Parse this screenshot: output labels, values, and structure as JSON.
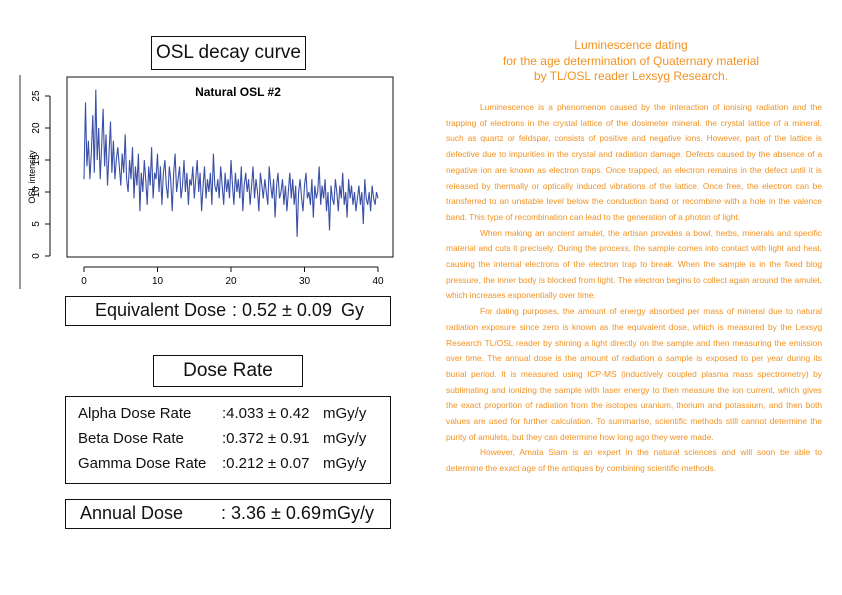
{
  "left": {
    "osl_title": "OSL decay curve",
    "equivalent_dose": {
      "label": "Equivalent Dose",
      "value": ": 0.52 ± 0.09",
      "unit": "Gy"
    },
    "dose_rate_title": "Dose Rate",
    "rates": [
      {
        "label": "Alpha Dose Rate",
        "value": ":4.033 ± 0.42",
        "unit": "mGy/y"
      },
      {
        "label": "Beta Dose Rate",
        "value": ":0.372 ± 0.91",
        "unit": "mGy/y"
      },
      {
        "label": "Gamma Dose Rate",
        "value": ":0.212 ± 0.07",
        "unit": "mGy/y"
      }
    ],
    "annual_dose": {
      "label": "Annual Dose",
      "value": ": 3.36 ± 0.69",
      "unit": "mGy/y"
    }
  },
  "chart_data": {
    "type": "line",
    "title": "Natural OSL #2",
    "xlabel": "",
    "ylabel": "OSL intensity",
    "xlim": [
      0,
      40
    ],
    "ylim": [
      0,
      25
    ],
    "xticks": [
      0,
      10,
      20,
      30,
      40
    ],
    "yticks": [
      0,
      5,
      10,
      15,
      20,
      25
    ],
    "grid": false,
    "line_color": "#3a4fa8",
    "x": [
      0,
      0.2,
      0.4,
      0.6,
      0.8,
      1,
      1.2,
      1.4,
      1.6,
      1.8,
      2,
      2.2,
      2.4,
      2.6,
      2.8,
      3,
      3.2,
      3.4,
      3.6,
      3.8,
      4,
      4.2,
      4.4,
      4.6,
      4.8,
      5,
      5.2,
      5.4,
      5.6,
      5.8,
      6,
      6.2,
      6.4,
      6.6,
      6.8,
      7,
      7.2,
      7.4,
      7.6,
      7.8,
      8,
      8.2,
      8.4,
      8.6,
      8.8,
      9,
      9.2,
      9.4,
      9.6,
      9.8,
      10,
      10.2,
      10.4,
      10.6,
      10.8,
      11,
      11.2,
      11.4,
      11.6,
      11.8,
      12,
      12.2,
      12.4,
      12.6,
      12.8,
      13,
      13.2,
      13.4,
      13.6,
      13.8,
      14,
      14.2,
      14.4,
      14.6,
      14.8,
      15,
      15.2,
      15.4,
      15.6,
      15.8,
      16,
      16.2,
      16.4,
      16.6,
      16.8,
      17,
      17.2,
      17.4,
      17.6,
      17.8,
      18,
      18.2,
      18.4,
      18.6,
      18.8,
      19,
      19.2,
      19.4,
      19.6,
      19.8,
      20,
      20.2,
      20.4,
      20.6,
      20.8,
      21,
      21.2,
      21.4,
      21.6,
      21.8,
      22,
      22.2,
      22.4,
      22.6,
      22.8,
      23,
      23.2,
      23.4,
      23.6,
      23.8,
      24,
      24.2,
      24.4,
      24.6,
      24.8,
      25,
      25.2,
      25.4,
      25.6,
      25.8,
      26,
      26.2,
      26.4,
      26.6,
      26.8,
      27,
      27.2,
      27.4,
      27.6,
      27.8,
      28,
      28.2,
      28.4,
      28.6,
      28.8,
      29,
      29.2,
      29.4,
      29.6,
      29.8,
      30,
      30.2,
      30.4,
      30.6,
      30.8,
      31,
      31.2,
      31.4,
      31.6,
      31.8,
      32,
      32.2,
      32.4,
      32.6,
      32.8,
      33,
      33.2,
      33.4,
      33.6,
      33.8,
      34,
      34.2,
      34.4,
      34.6,
      34.8,
      35,
      35.2,
      35.4,
      35.6,
      35.8,
      36,
      36.2,
      36.4,
      36.6,
      36.8,
      37,
      37.2,
      37.4,
      37.6,
      37.8,
      38,
      38.2,
      38.4,
      38.6,
      38.8,
      39,
      39.2,
      39.4,
      39.6,
      39.8,
      40
    ],
    "y": [
      12,
      24,
      14,
      18,
      12,
      16,
      22,
      13,
      26,
      15,
      20,
      12,
      17,
      23,
      14,
      19,
      11,
      16,
      21,
      13,
      18,
      12,
      15,
      17,
      14,
      11,
      16,
      13,
      19,
      12,
      10,
      15,
      12,
      17,
      9,
      14,
      11,
      16,
      7,
      13,
      10,
      15,
      12,
      8,
      14,
      11,
      17,
      9,
      13,
      12,
      16,
      10,
      14,
      8,
      13,
      15,
      11,
      9,
      14,
      12,
      7,
      13,
      16,
      10,
      12,
      14,
      9,
      11,
      15,
      10,
      13,
      8,
      12,
      11,
      14,
      9,
      12,
      15,
      10,
      13,
      7,
      11,
      14,
      9,
      12,
      10,
      13,
      8,
      16,
      11,
      10,
      12,
      9,
      14,
      11,
      8,
      13,
      10,
      12,
      9,
      15,
      11,
      8,
      13,
      10,
      12,
      9,
      14,
      7,
      11,
      13,
      10,
      12,
      8,
      11,
      14,
      9,
      12,
      10,
      7,
      13,
      11,
      9,
      12,
      10,
      8,
      14,
      11,
      9,
      12,
      6,
      11,
      13,
      9,
      10,
      12,
      8,
      11,
      7,
      10,
      13,
      9,
      12,
      8,
      11,
      3,
      10,
      12,
      9,
      7,
      11,
      13,
      9,
      10,
      8,
      12,
      6,
      11,
      9,
      10,
      14,
      8,
      11,
      9,
      12,
      7,
      10,
      4,
      11,
      9,
      8,
      12,
      10,
      7,
      11,
      9,
      13,
      8,
      10,
      6,
      12,
      9,
      11,
      8,
      10,
      7,
      9,
      11,
      8,
      10,
      5,
      12,
      9,
      8,
      10,
      7,
      11,
      9,
      8,
      10,
      9
    ]
  },
  "right": {
    "title_lines": [
      "Luminescence dating",
      "for the age determination of Quaternary material",
      "by TL/OSL reader Lexsyg Research."
    ],
    "paragraphs": [
      "Luminescence is a phenomenon caused by the interaction of ionising radiation and the trapping of electrons in the crystal lattice of the dosimeter mineral. the crystal lattice of a mineral, such as quartz or feldspar, consists of positive and negative ions. However, part of the lattice is defective due to impurities in the crystal and radiation damage. Defects caused by the absence of a negative ion are known as electron traps. Once trapped, an electron remains in the defect until it is released by thermally or optically induced vibrations of the lattice. Once free, the electron can be transferred to an unstable level below the conduction band or recombine with a hole in the valence band. This type of recombination can lead to the generation of a photon of light.",
      "When making an ancient amulet, the artisan provides a bowl, herbs, minerals and specific material and cuts it precisely. During the process, the sample comes into contact with light and heat, causing the internal electrons of the electron trap to break. When the sample is in the fixed blog pressure, the inner body is blocked from light. The electron begins to collect again around the amulet, which increases exponentially over time.",
      "For dating purposes, the amount of energy absorbed per mass of mineral due to natural radiation exposure since zero is known as the equivalent dose, which is measured by the Lexsyg Research TL/OSL reader by shining a light directly on the sample and then measuring the emission over time. The annual dose is the amount of radiation a sample is exposed to per year during its burial period. It is measured using ICP-MS (inductively coupled plasma mass spectrometry) by sublimating and ionizing the sample with laser energy to then measure the ion current, which gives the exact proportion of radiation from the isotopes uranium, thorium and potassium, and then both values are used for further calculation. To summarise, scientific methods still cannot determine the purity of amulets, but they can determine how long ago they were made.",
      "However, Amata Siam is an expert in the natural sciences and will soon be able to determine the exact age of the antiques by combining scientific methods."
    ]
  }
}
